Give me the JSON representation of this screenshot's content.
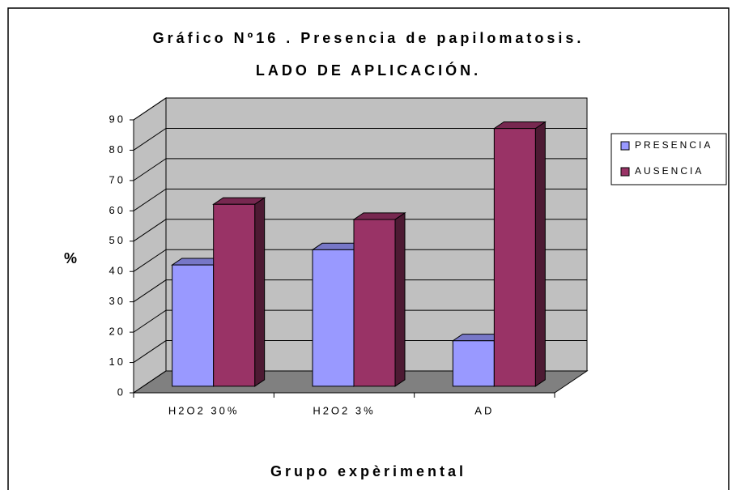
{
  "chart_data": {
    "type": "bar3d",
    "title": [
      "Gráfico Nº16 . Presencia de papilomatosis.",
      "LADO DE APLICACIÓN."
    ],
    "xlabel": "Grupo expèrimental",
    "ylabel": "%",
    "categories": [
      "H2O2 30%",
      "H2O2 3%",
      "AD"
    ],
    "series": [
      {
        "name": "PRESENCIA",
        "color": "#9999ff",
        "values": [
          40,
          45,
          15
        ]
      },
      {
        "name": "AUSENCIA",
        "color": "#993366",
        "values": [
          60,
          55,
          85
        ]
      }
    ],
    "ylim": [
      0,
      90
    ],
    "yticks": [
      0,
      10,
      20,
      30,
      40,
      50,
      60,
      70,
      80,
      90
    ],
    "grid": true,
    "legend": "right"
  }
}
